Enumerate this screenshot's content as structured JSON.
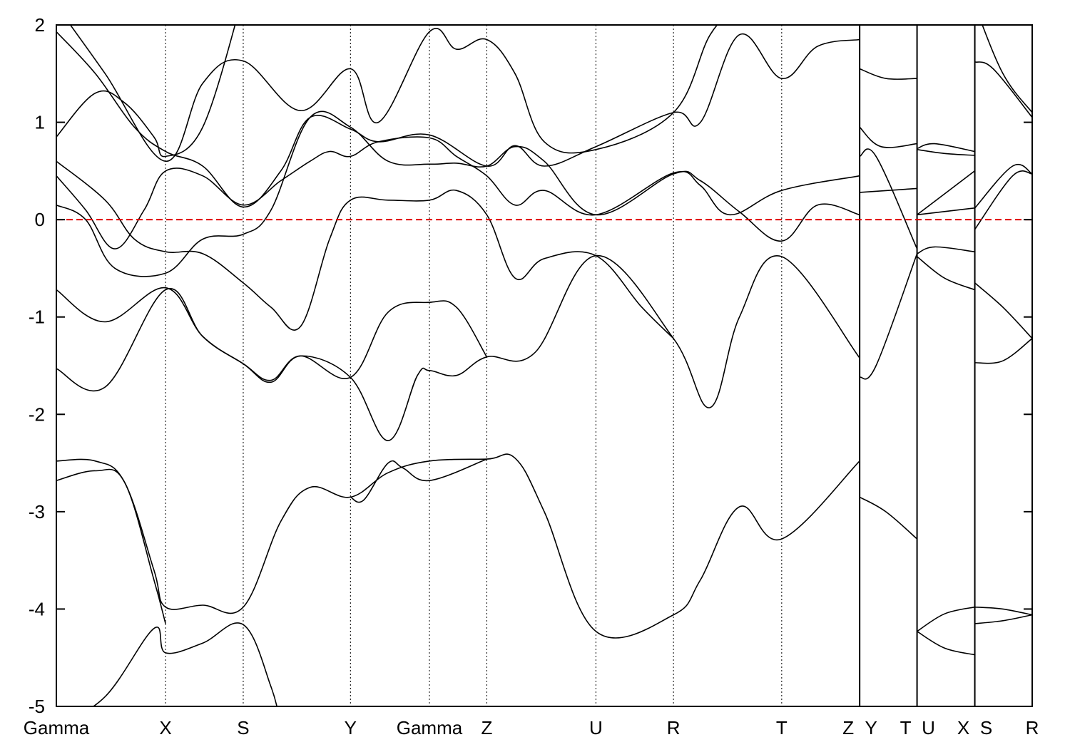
{
  "chart_data": {
    "type": "line",
    "title": "",
    "xlabel": "",
    "ylabel": "",
    "ylim": [
      -5,
      2
    ],
    "y_ticks": [
      "2",
      "1",
      "0",
      "-1",
      "-2",
      "-3",
      "-4",
      "-5"
    ],
    "y_tick_values": [
      2,
      1,
      0,
      -1,
      -2,
      -3,
      -4,
      -5
    ],
    "xlim": [
      0,
      1.0
    ],
    "high_symmetry_points": [
      {
        "label": "Gamma",
        "x": 0.0
      },
      {
        "label": "X",
        "x": 0.1119
      },
      {
        "label": "S",
        "x": 0.1915
      },
      {
        "label": "Y",
        "x": 0.3014
      },
      {
        "label": "Gamma",
        "x": 0.3823
      },
      {
        "label": "Z",
        "x": 0.4411
      },
      {
        "label": "U",
        "x": 0.5529
      },
      {
        "label": "R",
        "x": 0.6324
      },
      {
        "label": "T",
        "x": 0.7433
      },
      {
        "label": "Z",
        "x": 0.8232
      },
      {
        "label": "Y",
        "x": 0.8232
      },
      {
        "label": "T",
        "x": 0.882
      },
      {
        "label": "U",
        "x": 0.882
      },
      {
        "label": "X",
        "x": 0.9412
      },
      {
        "label": "S",
        "x": 0.9412
      },
      {
        "label": "R",
        "x": 1.0
      }
    ],
    "segment_breaks": [
      0.8232,
      0.882,
      0.9412
    ],
    "fermi_level": 0,
    "fermi_line_color": "#e00000",
    "band_color": "#000000",
    "grid": "vertical dotted lines at high-symmetry points",
    "legend": "none",
    "series": [
      {
        "points": [
          [
            0.0,
            -2.48
          ],
          [
            0.04,
            -2.48
          ],
          [
            0.07,
            -2.7
          ],
          [
            0.1,
            -3.6
          ],
          [
            0.1119,
            -3.98
          ],
          [
            0.15,
            -3.96
          ],
          [
            0.1915,
            -3.98
          ],
          [
            0.23,
            -3.1
          ],
          [
            0.26,
            -2.75
          ],
          [
            0.3014,
            -2.85
          ],
          [
            0.34,
            -2.6
          ],
          [
            0.3823,
            -2.48
          ],
          [
            0.4411,
            -2.46
          ],
          [
            0.47,
            -2.45
          ],
          [
            0.5,
            -3.0
          ],
          [
            0.5529,
            -4.23
          ],
          [
            0.6324,
            -4.06
          ],
          [
            0.66,
            -3.7
          ],
          [
            0.7,
            -2.95
          ],
          [
            0.7433,
            -3.28
          ],
          [
            0.8232,
            -2.48
          ]
        ]
      },
      {
        "points": [
          [
            0.0,
            -2.68
          ],
          [
            0.04,
            -2.58
          ],
          [
            0.07,
            -2.7
          ],
          [
            0.1,
            -3.7
          ],
          [
            0.1119,
            -4.15
          ]
        ]
      },
      {
        "points": [
          [
            0.0,
            -5.2
          ],
          [
            0.05,
            -4.9
          ],
          [
            0.1,
            -4.2
          ],
          [
            0.1119,
            -4.45
          ],
          [
            0.15,
            -4.35
          ],
          [
            0.1915,
            -4.16
          ],
          [
            0.22,
            -4.8
          ],
          [
            0.23,
            -5.2
          ]
        ]
      },
      {
        "points": [
          [
            0.3014,
            -2.85
          ],
          [
            0.315,
            -2.88
          ],
          [
            0.34,
            -2.5
          ],
          [
            0.355,
            -2.55
          ],
          [
            0.3823,
            -2.68
          ],
          [
            0.4411,
            -2.46
          ]
        ]
      },
      {
        "points": [
          [
            0.0,
            -1.53
          ],
          [
            0.05,
            -1.72
          ],
          [
            0.1119,
            -0.72
          ],
          [
            0.15,
            -1.2
          ],
          [
            0.1915,
            -1.48
          ],
          [
            0.22,
            -1.65
          ],
          [
            0.25,
            -1.4
          ],
          [
            0.3014,
            -1.62
          ],
          [
            0.34,
            -2.27
          ],
          [
            0.37,
            -1.6
          ],
          [
            0.3823,
            -1.55
          ],
          [
            0.41,
            -1.6
          ],
          [
            0.4411,
            -1.41
          ],
          [
            0.49,
            -1.37
          ],
          [
            0.5529,
            -0.37
          ],
          [
            0.6324,
            -1.22
          ],
          [
            0.67,
            -1.93
          ],
          [
            0.7,
            -1.0
          ],
          [
            0.7433,
            -0.38
          ],
          [
            0.8232,
            -1.42
          ]
        ]
      },
      {
        "points": [
          [
            0.0,
            -0.72
          ],
          [
            0.05,
            -1.05
          ],
          [
            0.1119,
            -0.7
          ],
          [
            0.15,
            -1.2
          ],
          [
            0.1915,
            -1.48
          ],
          [
            0.22,
            -1.67
          ],
          [
            0.25,
            -1.4
          ],
          [
            0.3014,
            -1.62
          ],
          [
            0.34,
            -0.95
          ],
          [
            0.3823,
            -0.85
          ],
          [
            0.41,
            -0.9
          ],
          [
            0.4411,
            -1.41
          ]
        ]
      },
      {
        "points": [
          [
            0.0,
            0.6
          ],
          [
            0.05,
            0.2
          ],
          [
            0.08,
            -0.2
          ],
          [
            0.1119,
            -0.33
          ],
          [
            0.15,
            -0.35
          ],
          [
            0.1915,
            -0.65
          ],
          [
            0.22,
            -0.9
          ],
          [
            0.25,
            -1.1
          ],
          [
            0.28,
            -0.2
          ],
          [
            0.3014,
            0.2
          ],
          [
            0.34,
            0.2
          ],
          [
            0.3823,
            0.2
          ],
          [
            0.41,
            0.3
          ],
          [
            0.4411,
            0.05
          ],
          [
            0.47,
            -0.6
          ],
          [
            0.5,
            -0.4
          ],
          [
            0.5529,
            -0.37
          ],
          [
            0.6,
            -0.9
          ],
          [
            0.6324,
            -1.22
          ]
        ]
      },
      {
        "points": [
          [
            0.0,
            0.15
          ],
          [
            0.03,
            0.0
          ],
          [
            0.06,
            -0.5
          ],
          [
            0.1119,
            -0.55
          ],
          [
            0.15,
            -0.2
          ],
          [
            0.1915,
            -0.15
          ],
          [
            0.22,
            0.1
          ],
          [
            0.26,
            1.05
          ],
          [
            0.3014,
            0.95
          ],
          [
            0.34,
            0.6
          ],
          [
            0.3823,
            0.57
          ],
          [
            0.41,
            0.58
          ],
          [
            0.4411,
            0.55
          ],
          [
            0.47,
            0.75
          ],
          [
            0.5,
            0.6
          ],
          [
            0.5529,
            0.05
          ],
          [
            0.6324,
            0.47
          ],
          [
            0.66,
            0.4
          ],
          [
            0.7,
            0.08
          ],
          [
            0.7433,
            -0.22
          ],
          [
            0.78,
            0.15
          ],
          [
            0.8232,
            0.05
          ]
        ]
      },
      {
        "points": [
          [
            0.0,
            0.45
          ],
          [
            0.03,
            0.1
          ],
          [
            0.06,
            -0.3
          ],
          [
            0.09,
            0.1
          ],
          [
            0.1119,
            0.5
          ],
          [
            0.15,
            0.45
          ],
          [
            0.1915,
            0.15
          ],
          [
            0.23,
            0.4
          ],
          [
            0.26,
            0.6
          ],
          [
            0.28,
            0.7
          ],
          [
            0.3014,
            0.65
          ],
          [
            0.33,
            0.8
          ],
          [
            0.3823,
            0.84
          ],
          [
            0.41,
            0.65
          ],
          [
            0.4411,
            0.45
          ],
          [
            0.47,
            0.15
          ],
          [
            0.5,
            0.3
          ],
          [
            0.5529,
            0.05
          ],
          [
            0.6324,
            0.48
          ],
          [
            0.66,
            0.35
          ],
          [
            0.69,
            0.05
          ],
          [
            0.7433,
            0.3
          ],
          [
            0.8232,
            0.45
          ]
        ]
      },
      {
        "points": [
          [
            0.0,
            0.85
          ],
          [
            0.04,
            1.3
          ],
          [
            0.07,
            1.2
          ],
          [
            0.1,
            0.85
          ],
          [
            0.1119,
            0.65
          ],
          [
            0.15,
            0.95
          ],
          [
            0.1915,
            2.3
          ]
        ]
      },
      {
        "points": [
          [
            0.0,
            1.93
          ],
          [
            0.04,
            1.5
          ],
          [
            0.08,
            0.95
          ],
          [
            0.1119,
            0.7
          ],
          [
            0.15,
            0.55
          ],
          [
            0.1915,
            0.13
          ],
          [
            0.23,
            0.5
          ],
          [
            0.26,
            1.05
          ],
          [
            0.3014,
            0.93
          ],
          [
            0.33,
            0.8
          ],
          [
            0.3823,
            0.87
          ],
          [
            0.4411,
            0.55
          ],
          [
            0.47,
            0.76
          ],
          [
            0.5,
            0.55
          ],
          [
            0.5529,
            0.75
          ],
          [
            0.6324,
            1.1
          ],
          [
            0.66,
            1.0
          ],
          [
            0.7,
            1.9
          ],
          [
            0.7433,
            1.45
          ],
          [
            0.78,
            1.78
          ],
          [
            0.8232,
            1.85
          ]
        ]
      },
      {
        "points": [
          [
            0.0,
            2.2
          ],
          [
            0.05,
            1.5
          ],
          [
            0.1119,
            0.6
          ],
          [
            0.15,
            1.4
          ],
          [
            0.1915,
            1.63
          ],
          [
            0.25,
            1.12
          ],
          [
            0.3014,
            1.55
          ],
          [
            0.33,
            1.0
          ],
          [
            0.3823,
            1.93
          ],
          [
            0.41,
            1.75
          ],
          [
            0.4411,
            1.85
          ],
          [
            0.47,
            1.5
          ],
          [
            0.5,
            0.8
          ],
          [
            0.5529,
            0.72
          ],
          [
            0.6324,
            1.1
          ],
          [
            0.67,
            1.9
          ],
          [
            0.7,
            2.2
          ]
        ]
      },
      {
        "points": [
          [
            0.8232,
            1.55
          ],
          [
            0.85,
            1.45
          ],
          [
            0.882,
            1.45
          ]
        ]
      },
      {
        "points": [
          [
            0.8232,
            0.95
          ],
          [
            0.845,
            0.75
          ],
          [
            0.882,
            0.78
          ]
        ]
      },
      {
        "points": [
          [
            0.8232,
            0.65
          ],
          [
            0.84,
            0.65
          ],
          [
            0.882,
            -0.3
          ]
        ]
      },
      {
        "points": [
          [
            0.8232,
            0.28
          ],
          [
            0.882,
            0.32
          ]
        ]
      },
      {
        "points": [
          [
            0.8232,
            -1.62
          ],
          [
            0.84,
            -1.5
          ],
          [
            0.882,
            -0.35
          ]
        ]
      },
      {
        "points": [
          [
            0.8232,
            -2.85
          ],
          [
            0.85,
            -3.0
          ],
          [
            0.882,
            -3.28
          ]
        ]
      },
      {
        "points": [
          [
            0.882,
            0.73
          ],
          [
            0.9,
            0.78
          ],
          [
            0.941,
            0.7
          ]
        ]
      },
      {
        "points": [
          [
            0.882,
            0.72
          ],
          [
            0.91,
            0.68
          ],
          [
            0.941,
            0.66
          ]
        ]
      },
      {
        "points": [
          [
            0.882,
            0.05
          ],
          [
            0.941,
            0.5
          ]
        ]
      },
      {
        "points": [
          [
            0.882,
            0.05
          ],
          [
            0.941,
            0.12
          ]
        ]
      },
      {
        "points": [
          [
            0.882,
            -0.35
          ],
          [
            0.9,
            -0.28
          ],
          [
            0.941,
            -0.33
          ]
        ]
      },
      {
        "points": [
          [
            0.882,
            -0.38
          ],
          [
            0.91,
            -0.6
          ],
          [
            0.941,
            -0.72
          ]
        ]
      },
      {
        "points": [
          [
            0.882,
            -4.23
          ],
          [
            0.91,
            -4.05
          ],
          [
            0.941,
            -3.98
          ]
        ]
      },
      {
        "points": [
          [
            0.882,
            -4.23
          ],
          [
            0.91,
            -4.4
          ],
          [
            0.941,
            -4.47
          ]
        ]
      },
      {
        "points": [
          [
            0.9412,
            2.2
          ],
          [
            0.97,
            1.5
          ],
          [
            1.0,
            1.1
          ]
        ]
      },
      {
        "points": [
          [
            0.9412,
            1.62
          ],
          [
            0.96,
            1.55
          ],
          [
            1.0,
            1.05
          ]
        ]
      },
      {
        "points": [
          [
            0.9412,
            0.12
          ],
          [
            0.98,
            0.55
          ],
          [
            1.0,
            0.47
          ]
        ]
      },
      {
        "points": [
          [
            0.9412,
            -0.1
          ],
          [
            0.98,
            0.45
          ],
          [
            1.0,
            0.47
          ]
        ]
      },
      {
        "points": [
          [
            0.9412,
            -0.65
          ],
          [
            0.97,
            -0.9
          ],
          [
            1.0,
            -1.22
          ]
        ]
      },
      {
        "points": [
          [
            0.9412,
            -1.47
          ],
          [
            0.97,
            -1.45
          ],
          [
            1.0,
            -1.22
          ]
        ]
      },
      {
        "points": [
          [
            0.9412,
            -3.98
          ],
          [
            0.97,
            -4.0
          ],
          [
            1.0,
            -4.06
          ]
        ]
      },
      {
        "points": [
          [
            0.9412,
            -4.15
          ],
          [
            0.97,
            -4.12
          ],
          [
            1.0,
            -4.06
          ]
        ]
      }
    ]
  }
}
